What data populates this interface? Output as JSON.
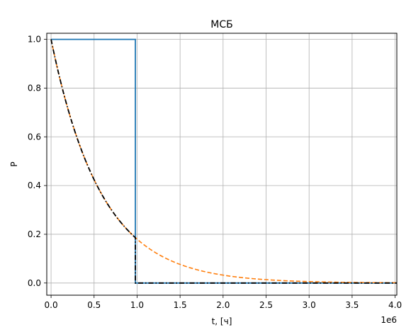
{
  "chart_data": {
    "type": "line",
    "title": "МСБ",
    "xlabel": "t, [ч]",
    "ylabel": "P",
    "x_offset_label": "1e6",
    "x_tick_labels": [
      "0.0",
      "0.5",
      "1.0",
      "1.5",
      "2.0",
      "2.5",
      "3.0",
      "3.5",
      "4.0"
    ],
    "y_tick_labels": [
      "0.0",
      "0.2",
      "0.4",
      "0.6",
      "0.8",
      "1.0"
    ],
    "xlim": [
      -0.05,
      4.02
    ],
    "ylim": [
      -0.05,
      1.025
    ],
    "x_scale": 1000000,
    "grid": true,
    "legend": "none",
    "series": [
      {
        "color": "#1f77b4",
        "style": "solid",
        "description": "step: P = 1 for t < 1.0e6, P = 0 after",
        "x": [
          0,
          0.98,
          0.98,
          4.02
        ],
        "y": [
          1.0,
          1.0,
          0.0,
          0.0
        ]
      },
      {
        "color": "#ff7f0e",
        "style": "dashed",
        "description": "exponential decay P = exp(-lambda t), P(1.0e6) ≈ 0.18",
        "decay_rate_per_1e6": 1.715,
        "x_range": [
          0,
          4.02
        ]
      },
      {
        "color": "#000000",
        "style": "dashdot",
        "description": "product of step and exponential",
        "decay_rate_per_1e6": 1.715,
        "cutoff": 0.98,
        "x_range": [
          0,
          4.02
        ]
      }
    ]
  }
}
